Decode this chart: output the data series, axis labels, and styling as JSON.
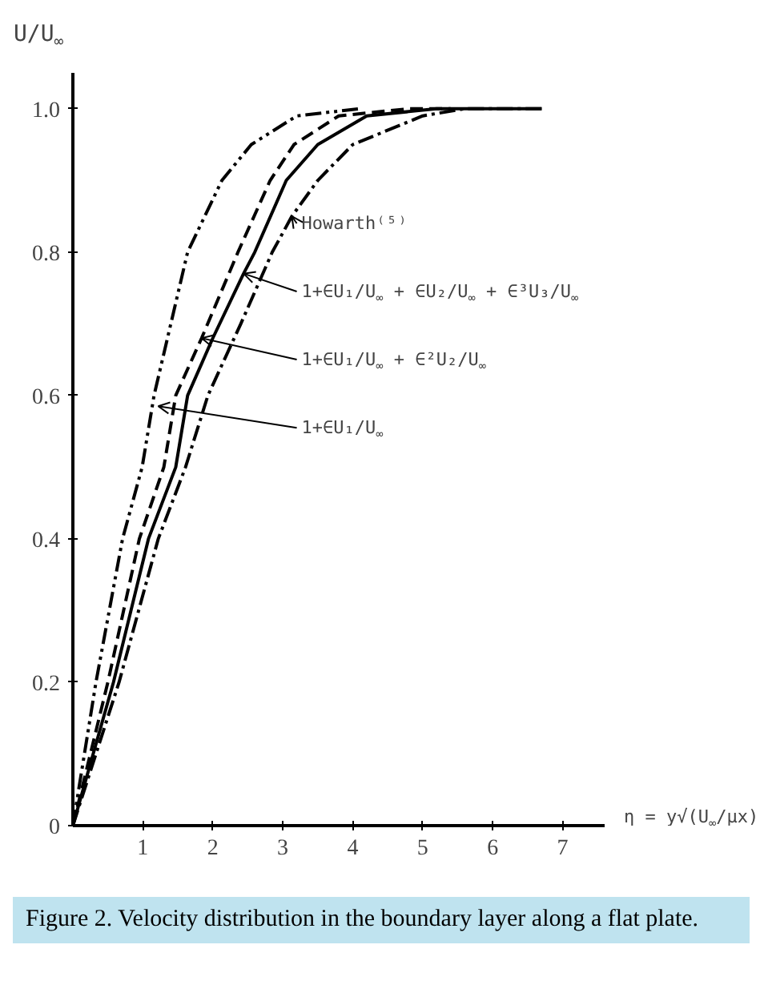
{
  "chart_data": {
    "type": "line",
    "xlabel": "η = y√(U$_{∞}$/μx)",
    "ylabel": "U/U$_{∞}$",
    "xlim": [
      0,
      7.6
    ],
    "ylim": [
      0,
      1.05
    ],
    "xticks": [
      1,
      2,
      3,
      4,
      5,
      6,
      7
    ],
    "yticks": [
      0,
      0.2,
      0.4,
      0.6,
      0.8,
      {
        "value": 1,
        "label": "1.0"
      }
    ],
    "grid": false,
    "legend": false,
    "series": [
      {
        "color": "#000000",
        "line_style": "dashdotdot",
        "x": [
          0,
          0.33,
          0.71,
          0.99,
          1.16,
          1.4,
          1.64,
          2.13,
          2.55,
          3.2,
          4.1
        ],
        "values": [
          0,
          0.2,
          0.4,
          0.5,
          0.6,
          0.7,
          0.8,
          0.9,
          0.95,
          0.99,
          1.0
        ]
      },
      {
        "color": "#000000",
        "line_style": "dashed",
        "x": [
          0,
          0.5,
          0.95,
          1.3,
          1.47,
          1.84,
          2.36,
          2.82,
          3.16,
          3.8,
          4.8,
          5.4
        ],
        "values": [
          0,
          0.2,
          0.4,
          0.5,
          0.6,
          0.68,
          0.8,
          0.9,
          0.95,
          0.99,
          1.0,
          1.0
        ]
      },
      {
        "color": "#000000",
        "line_style": "solid",
        "x": [
          0,
          0.58,
          1.08,
          1.47,
          1.64,
          2.0,
          2.44,
          2.6,
          3.05,
          3.5,
          4.2,
          5.2,
          6.7
        ],
        "values": [
          0,
          0.2,
          0.4,
          0.5,
          0.6,
          0.68,
          0.77,
          0.8,
          0.9,
          0.95,
          0.99,
          1.0,
          1.0
        ]
      },
      {
        "color": "#000000",
        "line_style": "dashdot",
        "x": [
          0,
          0.66,
          1.22,
          1.61,
          1.93,
          2.4,
          2.85,
          3.13,
          3.5,
          4.0,
          5.0,
          5.6,
          6.7
        ],
        "values": [
          0,
          0.2,
          0.4,
          0.5,
          0.6,
          0.7,
          0.8,
          0.85,
          0.9,
          0.95,
          0.99,
          1.0,
          1.0
        ]
      }
    ],
    "annotations": [
      {
        "text": "Howarth⁽⁵⁾",
        "x": 3.13,
        "y": 0.85
      },
      {
        "text": "1+∈U₁/U$_{∞}$ + ∈U₂/U$_{∞}$ + ∈³U₃/U$_{∞}$",
        "x": 2.44,
        "y": 0.77
      },
      {
        "text": "1+∈U₁/U$_{∞}$ + ∈²U₂/U$_{∞}$",
        "x": 1.84,
        "y": 0.68
      },
      {
        "text": "1+∈U₁/U$_{∞}$",
        "x": 1.22,
        "y": 0.585
      },
      "Figure 2. Velocity distribution in the boundary layer along a flat plate."
    ]
  }
}
